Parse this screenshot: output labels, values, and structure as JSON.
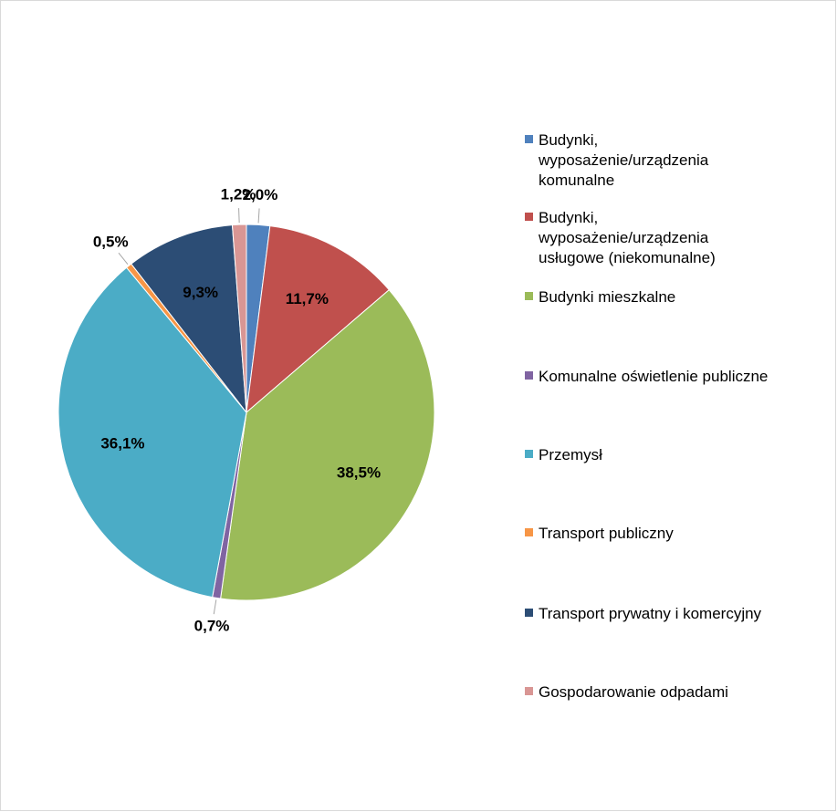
{
  "chart_data": {
    "type": "pie",
    "categories": [
      "Budynki, wyposażenie/urządzenia komunalne",
      "Budynki, wyposażenie/urządzenia usługowe (niekomunalne)",
      "Budynki mieszkalne",
      "Komunalne oświetlenie publiczne",
      "Przemysł",
      "Transport publiczny",
      "Transport prywatny i komercyjny",
      "Gospodarowanie odpadami"
    ],
    "values": [
      2.0,
      11.7,
      38.5,
      0.7,
      36.1,
      0.5,
      9.3,
      1.2
    ],
    "value_labels": [
      "2,0%",
      "11,7%",
      "38,5%",
      "0,7%",
      "36,1%",
      "0,5%",
      "9,3%",
      "1,2%"
    ],
    "colors": [
      "#4f81bd",
      "#c0504d",
      "#9bbb59",
      "#8064a2",
      "#4bacc6",
      "#f79646",
      "#2c4d75",
      "#d99694"
    ],
    "legend": "right"
  }
}
